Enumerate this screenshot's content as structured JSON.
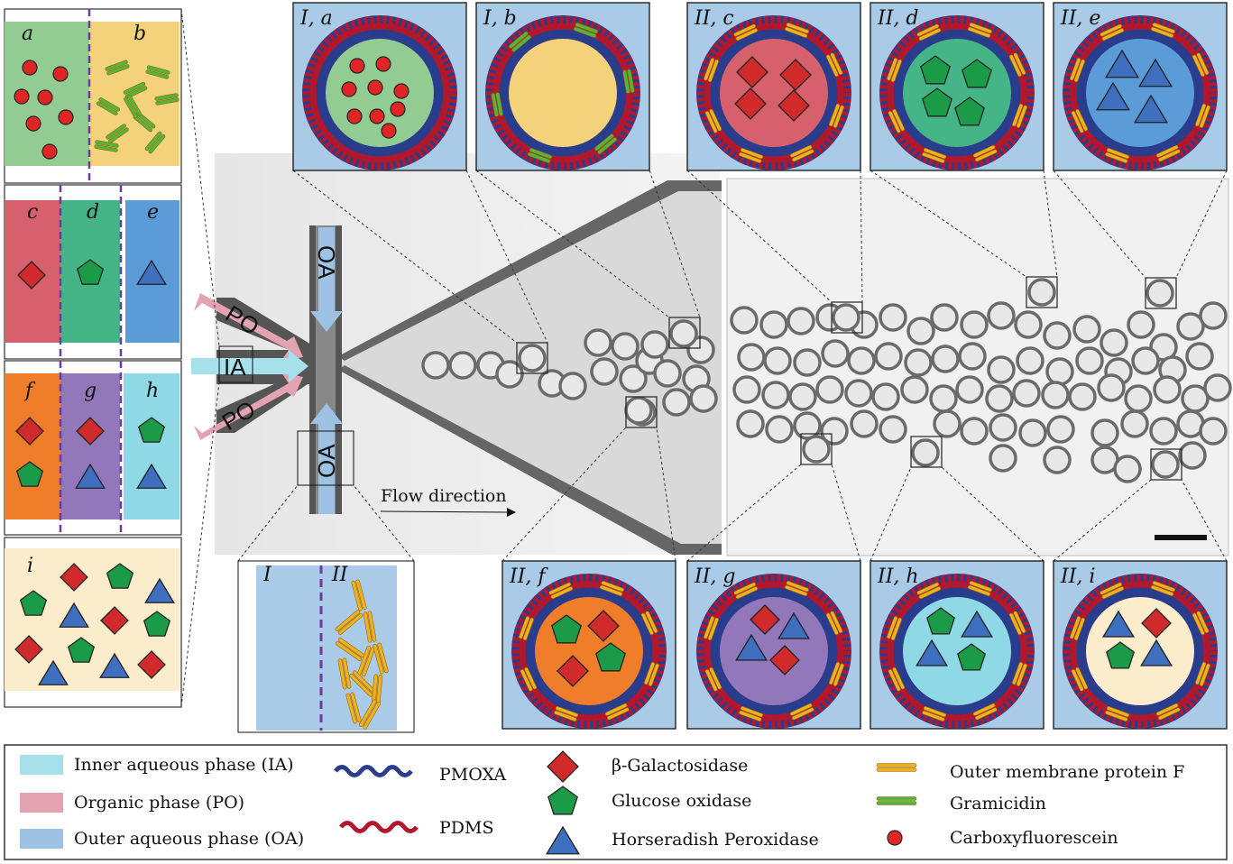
{
  "colors": {
    "panel_bg": "#a9cbe8",
    "pdms": "#b3172c",
    "pmoxa": "#2a3d8c",
    "inner_aqueous": "#a6e0ea",
    "organic": "#e3a3b3",
    "outer_aqueous": "#9dc2e4",
    "galactosidase": "#d12a2a",
    "glucose_oxidase": "#1b9b48",
    "peroxidase": "#3f6fbf",
    "ompf": "#f2b021",
    "gramicidin": "#57b43a",
    "carboxyfluorescein": "#e02525",
    "comp_a": "#92cc92",
    "comp_b": "#f3d27a",
    "comp_c": "#d7606d",
    "comp_d": "#45b588",
    "comp_e": "#5b9bd8",
    "comp_f": "#ef7d29",
    "comp_g": "#9277bb",
    "comp_h": "#8fd9e6",
    "comp_i": "#fbeccb"
  },
  "compartments": {
    "a": "a",
    "b": "b",
    "c": "c",
    "d": "d",
    "e": "e",
    "f": "f",
    "g": "g",
    "h": "h",
    "i": "i"
  },
  "vesicles": {
    "Ia": "I, a",
    "Ib": "I, b",
    "IIc": "II, c",
    "IId": "II, d",
    "IIe": "II, e",
    "IIf": "II, f",
    "IIg": "II, g",
    "IIh": "II, h",
    "IIi": "II, i"
  },
  "chip": {
    "oa": "OA",
    "po": "PO",
    "ia": "IA",
    "flow_direction": "Flow direction",
    "membrane_I": "I",
    "membrane_II": "II"
  },
  "legend": {
    "inner_aqueous": "Inner aqueous phase (IA)",
    "organic": "Organic phase (PO)",
    "outer_aqueous": "Outer aqueous phase (OA)",
    "pmoxa": "PMOXA",
    "pdms": "PDMS",
    "galactosidase": "β-Galactosidase",
    "glucose_oxidase": "Glucose oxidase",
    "peroxidase": "Horseradish Peroxidase",
    "ompf": "Outer membrane protein F",
    "gramicidin": "Gramicidin",
    "carboxyfluorescein": "Carboxyfluorescein"
  }
}
